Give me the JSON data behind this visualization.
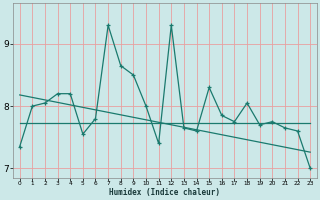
{
  "xlabel": "Humidex (Indice chaleur)",
  "x": [
    0,
    1,
    2,
    3,
    4,
    5,
    6,
    7,
    8,
    9,
    10,
    11,
    12,
    13,
    14,
    15,
    16,
    17,
    18,
    19,
    20,
    21,
    22,
    23
  ],
  "y_data": [
    7.35,
    8.0,
    8.05,
    8.2,
    8.2,
    7.55,
    7.8,
    9.3,
    8.65,
    8.5,
    8.0,
    7.4,
    9.3,
    7.65,
    7.6,
    8.3,
    7.85,
    7.75,
    8.05,
    7.7,
    7.75,
    7.65,
    7.6,
    7.0
  ],
  "y_flat": [
    7.73,
    7.73,
    7.73,
    7.73,
    7.73,
    7.73,
    7.73,
    7.73,
    7.73,
    7.73,
    7.73,
    7.73,
    7.73,
    7.73,
    7.73,
    7.73,
    7.73,
    7.73,
    7.73,
    7.73,
    7.73,
    7.73,
    7.73,
    7.73
  ],
  "y_trend": [
    8.18,
    8.14,
    8.1,
    8.06,
    8.02,
    7.98,
    7.94,
    7.9,
    7.86,
    7.82,
    7.78,
    7.74,
    7.7,
    7.66,
    7.62,
    7.58,
    7.54,
    7.5,
    7.46,
    7.42,
    7.38,
    7.34,
    7.3,
    7.26
  ],
  "bg_color": "#cce8e8",
  "grid_color": "#e8a0a0",
  "line_color": "#1a7a6e",
  "ylim": [
    6.85,
    9.65
  ],
  "xlim": [
    -0.5,
    23.5
  ],
  "yticks": [
    7,
    8,
    9
  ],
  "xtick_labels": [
    "0",
    "1",
    "2",
    "3",
    "4",
    "5",
    "6",
    "7",
    "8",
    "9",
    "10",
    "11",
    "12",
    "13",
    "14",
    "15",
    "16",
    "17",
    "18",
    "19",
    "20",
    "21",
    "22",
    "23"
  ]
}
